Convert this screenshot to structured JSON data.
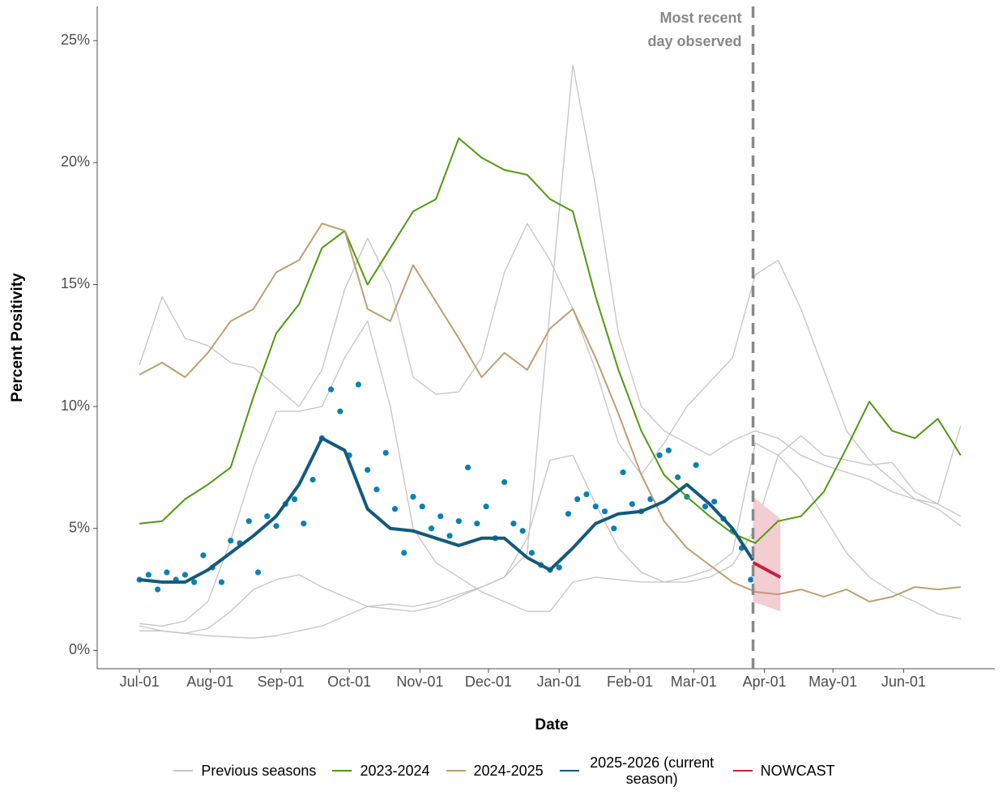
{
  "chart_data": {
    "type": "line",
    "x_label": "Date",
    "y_label": "Percent Positivity",
    "xlim": [
      -18.5,
      375
    ],
    "ylim": [
      -0.75,
      26.4
    ],
    "xticks": [
      {
        "value": 0,
        "label": "Jul-01"
      },
      {
        "value": 31,
        "label": "Aug-01"
      },
      {
        "value": 62,
        "label": "Sep-01"
      },
      {
        "value": 92,
        "label": "Oct-01"
      },
      {
        "value": 123,
        "label": "Nov-01"
      },
      {
        "value": 153,
        "label": "Dec-01"
      },
      {
        "value": 184,
        "label": "Jan-01"
      },
      {
        "value": 215,
        "label": "Feb-01"
      },
      {
        "value": 243,
        "label": "Mar-01"
      },
      {
        "value": 274,
        "label": "Apr-01"
      },
      {
        "value": 304,
        "label": "May-01"
      },
      {
        "value": 335,
        "label": "Jun-01"
      }
    ],
    "yticks": [
      {
        "value": 0,
        "label": "0%"
      },
      {
        "value": 5,
        "label": "5%"
      },
      {
        "value": 10,
        "label": "10%"
      },
      {
        "value": 15,
        "label": "15%"
      },
      {
        "value": 20,
        "label": "20%"
      },
      {
        "value": 25,
        "label": "25%"
      }
    ],
    "grid": false,
    "legend": "bottom",
    "annotation": {
      "x": 269,
      "lines": [
        "Most recent",
        "day observed"
      ],
      "color": "#888888"
    },
    "x": [
      0,
      10,
      20,
      30,
      40,
      50,
      60,
      70,
      80,
      90,
      100,
      110,
      120,
      130,
      140,
      150,
      160,
      170,
      180,
      190,
      200,
      210,
      220,
      230,
      240,
      250,
      260,
      270,
      280,
      290,
      300,
      310,
      320,
      330,
      340,
      350,
      360
    ],
    "previous_seasons": {
      "name": "Previous seasons",
      "color": "#c4c4c4",
      "lines": [
        [
          0.8,
          0.8,
          0.7,
          0.6,
          0.55,
          0.5,
          0.6,
          0.8,
          1.0,
          1.4,
          1.8,
          1.9,
          1.8,
          2.0,
          2.3,
          2.6,
          3.0,
          4.0,
          14,
          24,
          19,
          13,
          10,
          9,
          8.5,
          8,
          8.6,
          9.0,
          8.7,
          8.0,
          7.6,
          7.3,
          7.0,
          6.5,
          6.2,
          5.8,
          5.1
        ],
        [
          11.7,
          14.5,
          12.8,
          12.5,
          11.8,
          11.6,
          10.8,
          10.0,
          11.5,
          14.8,
          16.9,
          15.0,
          11.2,
          10.5,
          10.6,
          12.0,
          15.5,
          17.5,
          16.0,
          14.0,
          11.5,
          8.5,
          7.2,
          8.5,
          10.0,
          11.0,
          12.0,
          15.4,
          16.0,
          14.0,
          11.5,
          9.0,
          7.8,
          7.0,
          6.2,
          6.0,
          9.2
        ],
        [
          1.0,
          0.8,
          0.7,
          0.9,
          1.6,
          2.5,
          2.9,
          3.1,
          2.6,
          2.2,
          1.8,
          1.7,
          1.6,
          1.8,
          2.2,
          2.6,
          3.0,
          4.6,
          7.8,
          8.0,
          6.0,
          4.2,
          3.2,
          2.8,
          2.8,
          3.0,
          3.5,
          5.0,
          8.0,
          8.8,
          8.0,
          7.8,
          7.6,
          7.7,
          6.5,
          6.0,
          5.5
        ],
        [
          1.1,
          1.0,
          1.2,
          2.0,
          4.5,
          7.5,
          9.8,
          9.8,
          10.0,
          12.0,
          13.5,
          10.0,
          5.0,
          3.6,
          3.0,
          2.4,
          2.0,
          1.6,
          1.6,
          2.8,
          3.0,
          2.9,
          2.8,
          2.8,
          3.0,
          3.3,
          4.0,
          8.5,
          8.0,
          7.0,
          5.5,
          4.0,
          3.0,
          2.4,
          2.0,
          1.5,
          1.3
        ]
      ]
    },
    "series": [
      {
        "name": "2023-2024",
        "color": "#4e9a10",
        "width": 2,
        "x": [
          0,
          10,
          20,
          30,
          40,
          50,
          60,
          70,
          80,
          90,
          100,
          110,
          120,
          130,
          140,
          150,
          160,
          170,
          180,
          190,
          200,
          210,
          220,
          230,
          240,
          250,
          260,
          270,
          280,
          290,
          300,
          310,
          320,
          330,
          340,
          350,
          360
        ],
        "values": [
          5.2,
          5.3,
          6.2,
          6.8,
          7.5,
          10.4,
          13.0,
          14.2,
          16.5,
          17.2,
          15.0,
          16.5,
          18.0,
          18.5,
          21.0,
          20.2,
          19.7,
          19.5,
          18.5,
          18.0,
          14.5,
          11.5,
          9.0,
          7.2,
          6.3,
          5.5,
          4.8,
          4.4,
          5.3,
          5.5,
          6.5,
          8.3,
          10.2,
          9.0,
          8.7,
          9.5,
          8.0
        ]
      },
      {
        "name": "2024-2025",
        "color": "#bf9e72",
        "width": 2,
        "x": [
          0,
          10,
          20,
          30,
          40,
          50,
          60,
          70,
          80,
          90,
          100,
          110,
          120,
          130,
          140,
          150,
          160,
          170,
          180,
          190,
          200,
          210,
          220,
          230,
          240,
          250,
          260,
          270,
          280,
          290,
          300,
          310,
          320,
          330,
          340,
          350,
          360
        ],
        "values": [
          11.3,
          11.8,
          11.2,
          12.2,
          13.5,
          14.0,
          15.5,
          16.0,
          17.5,
          17.2,
          14.0,
          13.5,
          15.8,
          14.3,
          12.8,
          11.2,
          12.2,
          11.5,
          13.2,
          14.0,
          12.0,
          9.7,
          7.2,
          5.3,
          4.2,
          3.5,
          2.8,
          2.4,
          2.3,
          2.5,
          2.2,
          2.5,
          2.0,
          2.2,
          2.6,
          2.5,
          2.6
        ]
      },
      {
        "name": "2025-2026 (current season)",
        "color": "#135a7c",
        "width": 4,
        "point_color": "#0a80b5",
        "x": [
          0,
          10,
          20,
          30,
          40,
          50,
          60,
          70,
          80,
          90,
          100,
          110,
          120,
          130,
          140,
          150,
          160,
          170,
          180,
          190,
          200,
          210,
          220,
          230,
          240,
          250,
          260,
          269
        ],
        "values": [
          2.9,
          2.8,
          2.8,
          3.3,
          4.0,
          4.7,
          5.5,
          6.8,
          8.7,
          8.2,
          5.8,
          5.0,
          4.9,
          4.6,
          4.3,
          4.6,
          4.6,
          3.8,
          3.3,
          4.2,
          5.2,
          5.6,
          5.7,
          6.1,
          6.8,
          6.0,
          5.0,
          3.7
        ],
        "points_x": [
          0,
          4,
          8,
          12,
          16,
          20,
          24,
          28,
          32,
          36,
          40,
          44,
          48,
          52,
          56,
          60,
          64,
          68,
          72,
          76,
          80,
          84,
          88,
          92,
          96,
          100,
          104,
          108,
          112,
          116,
          120,
          124,
          128,
          132,
          136,
          140,
          144,
          148,
          152,
          156,
          160,
          164,
          168,
          172,
          176,
          180,
          184,
          188,
          192,
          196,
          200,
          204,
          208,
          212,
          216,
          220,
          224,
          228,
          232,
          236,
          240,
          244,
          248,
          252,
          256,
          260,
          264,
          268
        ],
        "points": [
          2.9,
          3.1,
          2.5,
          3.2,
          2.9,
          3.1,
          2.8,
          3.9,
          3.4,
          2.8,
          4.5,
          4.4,
          5.3,
          3.2,
          5.5,
          5.1,
          6.0,
          6.2,
          5.2,
          7.0,
          8.7,
          10.7,
          9.8,
          8.0,
          10.9,
          7.4,
          6.6,
          8.1,
          5.8,
          4.0,
          6.3,
          5.9,
          5.0,
          5.5,
          4.7,
          5.3,
          7.5,
          5.2,
          5.9,
          4.6,
          6.9,
          5.2,
          4.9,
          4.0,
          3.5,
          3.3,
          3.4,
          5.6,
          6.2,
          6.4,
          5.9,
          5.7,
          5.0,
          7.3,
          6.0,
          5.7,
          6.2,
          8.0,
          8.2,
          7.1,
          6.3,
          7.6,
          5.9,
          6.1,
          5.4,
          4.9,
          4.2,
          2.9
        ]
      },
      {
        "name": "NOWCAST",
        "color": "#c8203a",
        "width": 4,
        "band_color": "#f2cdd2",
        "x": [
          269,
          281
        ],
        "values": [
          3.6,
          3.0
        ],
        "lower": [
          2.0,
          1.6
        ],
        "upper": [
          6.3,
          5.4
        ]
      }
    ]
  }
}
